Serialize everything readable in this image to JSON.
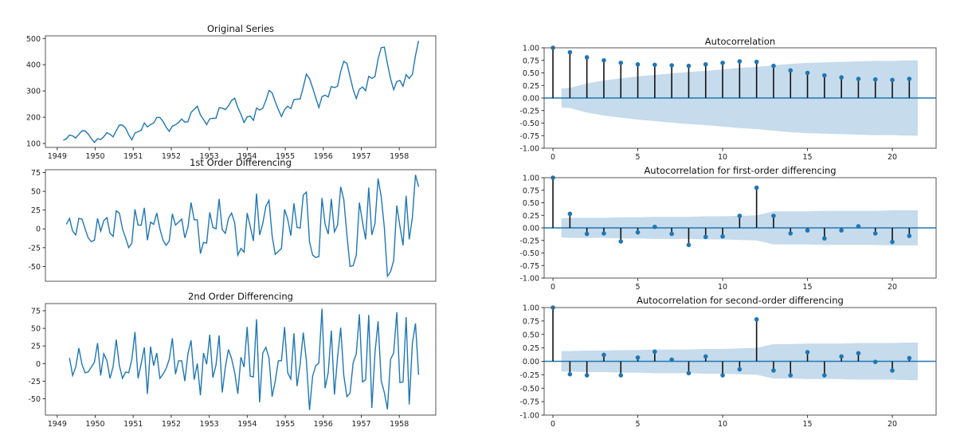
{
  "colors": {
    "line": "#1f77b4",
    "band": "#c6dbec",
    "stem": "#111111",
    "axis": "#555555"
  },
  "chart_data": [
    {
      "type": "line",
      "title": "Original Series",
      "x_start": 1949.16,
      "x_step": 0.082,
      "xlim": [
        1948.69,
        1958.96
      ],
      "ylim": [
        85,
        510
      ],
      "xticks": [
        1949,
        1950,
        1951,
        1952,
        1953,
        1954,
        1955,
        1956,
        1957,
        1958
      ],
      "yticks": [
        100,
        200,
        300,
        400,
        500
      ],
      "values": [
        112,
        118,
        132,
        129,
        121,
        135,
        148,
        148,
        136,
        119,
        104,
        118,
        115,
        126,
        141,
        135,
        125,
        149,
        170,
        170,
        158,
        133,
        114,
        140,
        145,
        150,
        178,
        163,
        172,
        178,
        199,
        199,
        184,
        162,
        146,
        166,
        171,
        180,
        193,
        181,
        183,
        218,
        230,
        242,
        209,
        191,
        172,
        194,
        196,
        196,
        236,
        235,
        229,
        243,
        264,
        272,
        237,
        211,
        180,
        201,
        204,
        188,
        235,
        227,
        234,
        264,
        302,
        293,
        259,
        229,
        203,
        229,
        242,
        233,
        267,
        269,
        270,
        315,
        364,
        347,
        312,
        274,
        237,
        278,
        284,
        277,
        317,
        313,
        318,
        374,
        413,
        405,
        355,
        306,
        271,
        306,
        315,
        301,
        356,
        348,
        355,
        422,
        465,
        467,
        404,
        347,
        305,
        336,
        340,
        318,
        362,
        348,
        363,
        435,
        491
      ]
    },
    {
      "type": "line",
      "title": "1st Order Differencing",
      "x_start": 1949.242,
      "x_step": 0.082,
      "xlim": [
        1948.69,
        1958.96
      ],
      "ylim": [
        -69.75,
        78.75
      ],
      "xticks": [],
      "yticks": [
        -50,
        -25,
        0,
        25,
        50,
        75
      ],
      "values": [
        6,
        14,
        -3,
        -8,
        14,
        13,
        0,
        -12,
        -17,
        -15,
        14,
        -3,
        11,
        15,
        -6,
        -10,
        24,
        21,
        0,
        -12,
        -25,
        -19,
        26,
        5,
        5,
        28,
        -15,
        9,
        6,
        21,
        0,
        -15,
        -22,
        -16,
        20,
        5,
        9,
        13,
        -12,
        2,
        35,
        12,
        12,
        -33,
        -18,
        -19,
        22,
        2,
        0,
        40,
        -1,
        -6,
        14,
        21,
        8,
        -35,
        -26,
        -31,
        21,
        3,
        -16,
        47,
        -8,
        7,
        30,
        38,
        -9,
        -34,
        -30,
        -26,
        26,
        13,
        -9,
        34,
        2,
        1,
        45,
        49,
        -17,
        -35,
        -38,
        -37,
        41,
        6,
        -7,
        40,
        -4,
        5,
        56,
        39,
        -8,
        -50,
        -49,
        -35,
        35,
        9,
        -14,
        55,
        -8,
        7,
        67,
        43,
        2,
        -63,
        -57,
        -42,
        31,
        4,
        -22,
        44,
        -14,
        15,
        72,
        56
      ]
    },
    {
      "type": "line",
      "title": "2nd Order Differencing",
      "x_start": 1949.324,
      "x_step": 0.082,
      "xlim": [
        1948.69,
        1958.96
      ],
      "ylim": [
        -73.2,
        85.2
      ],
      "xticks": [
        1949,
        1950,
        1951,
        1952,
        1953,
        1954,
        1955,
        1956,
        1957,
        1958
      ],
      "yticks": [
        -50,
        -25,
        0,
        25,
        50,
        75
      ],
      "values": [
        8,
        -17,
        -5,
        22,
        -1,
        -13,
        -12,
        -5,
        2,
        29,
        -17,
        14,
        4,
        -21,
        -4,
        34,
        -3,
        -21,
        -12,
        -13,
        6,
        45,
        -21,
        0,
        23,
        -43,
        24,
        -3,
        15,
        -21,
        -15,
        -7,
        6,
        36,
        -15,
        4,
        4,
        -25,
        14,
        33,
        -23,
        0,
        -45,
        15,
        -1,
        41,
        -20,
        -2,
        40,
        -41,
        -5,
        20,
        7,
        -13,
        -43,
        9,
        -5,
        52,
        -18,
        -19,
        63,
        -55,
        15,
        23,
        8,
        -47,
        -25,
        4,
        4,
        52,
        -13,
        -22,
        43,
        -32,
        -1,
        44,
        4,
        -66,
        -18,
        -3,
        1,
        78,
        -35,
        -13,
        47,
        -44,
        9,
        51,
        -17,
        -47,
        -42,
        1,
        14,
        70,
        -26,
        -23,
        69,
        -63,
        15,
        60,
        -24,
        -41,
        -65,
        6,
        15,
        73,
        -27,
        -26,
        66,
        -58,
        29,
        57,
        -16
      ]
    },
    {
      "type": "stem",
      "title": "Autocorrelation",
      "xlim": [
        -0.52,
        22.58
      ],
      "ylim": [
        -1,
        1
      ],
      "xticks": [
        0,
        5,
        10,
        15,
        20
      ],
      "yticks": [
        -1,
        -0.75,
        -0.5,
        -0.25,
        0,
        0.25,
        0.5,
        0.75,
        1
      ],
      "values": [
        1,
        0.91,
        0.81,
        0.75,
        0.7,
        0.67,
        0.66,
        0.65,
        0.64,
        0.67,
        0.7,
        0.73,
        0.72,
        0.64,
        0.55,
        0.5,
        0.45,
        0.41,
        0.38,
        0.37,
        0.36,
        0.38
      ],
      "confint_lags": [
        0.5,
        1,
        2,
        3,
        4,
        5,
        6,
        7,
        8,
        9,
        10,
        11,
        12,
        13,
        14,
        15,
        16,
        17,
        18,
        19,
        20,
        21,
        21.5
      ],
      "confint": [
        0.19,
        0.2,
        0.29,
        0.35,
        0.39,
        0.43,
        0.46,
        0.49,
        0.52,
        0.54,
        0.57,
        0.6,
        0.62,
        0.65,
        0.68,
        0.7,
        0.71,
        0.72,
        0.73,
        0.74,
        0.74,
        0.75,
        0.75
      ]
    },
    {
      "type": "stem",
      "title": "Autocorrelation for first-order differencing",
      "xlim": [
        -0.52,
        22.58
      ],
      "ylim": [
        -1,
        1
      ],
      "xticks": [
        0,
        5,
        10,
        15,
        20
      ],
      "yticks": [
        -1,
        -0.75,
        -0.5,
        -0.25,
        0,
        0.25,
        0.5,
        0.75,
        1
      ],
      "values": [
        1,
        0.28,
        -0.12,
        -0.11,
        -0.27,
        -0.09,
        0.02,
        -0.12,
        -0.34,
        -0.18,
        -0.17,
        0.24,
        0.8,
        0.24,
        -0.11,
        -0.05,
        -0.21,
        -0.05,
        0.03,
        -0.11,
        -0.28,
        -0.16
      ],
      "confint_lags": [
        0.5,
        1,
        2,
        3,
        4,
        5,
        6,
        7,
        8,
        9,
        10,
        11,
        12,
        13,
        14,
        15,
        16,
        17,
        18,
        19,
        20,
        21,
        21.5
      ],
      "confint": [
        0.19,
        0.2,
        0.2,
        0.2,
        0.21,
        0.21,
        0.22,
        0.22,
        0.22,
        0.23,
        0.23,
        0.24,
        0.25,
        0.33,
        0.33,
        0.33,
        0.34,
        0.34,
        0.34,
        0.34,
        0.35,
        0.35,
        0.35
      ]
    },
    {
      "type": "stem",
      "title": "Autocorrelation for second-order differencing",
      "xlim": [
        -0.52,
        22.58
      ],
      "ylim": [
        -1,
        1
      ],
      "xticks": [
        0,
        5,
        10,
        15,
        20
      ],
      "yticks": [
        -1,
        -0.75,
        -0.5,
        -0.25,
        0,
        0.25,
        0.5,
        0.75,
        1
      ],
      "values": [
        1,
        -0.24,
        -0.26,
        0.12,
        -0.26,
        0.07,
        0.18,
        0.03,
        -0.22,
        0.09,
        -0.26,
        -0.15,
        0.78,
        -0.17,
        -0.26,
        0.17,
        -0.26,
        0.09,
        0.15,
        -0.01,
        -0.17,
        0.06
      ],
      "confint_lags": [
        0.5,
        1,
        2,
        3,
        4,
        5,
        6,
        7,
        8,
        9,
        10,
        11,
        12,
        13,
        14,
        15,
        16,
        17,
        18,
        19,
        20,
        21,
        21.5
      ],
      "confint": [
        0.19,
        0.19,
        0.2,
        0.2,
        0.21,
        0.21,
        0.22,
        0.22,
        0.22,
        0.23,
        0.23,
        0.24,
        0.25,
        0.32,
        0.32,
        0.33,
        0.33,
        0.33,
        0.34,
        0.34,
        0.34,
        0.35,
        0.35
      ]
    }
  ]
}
